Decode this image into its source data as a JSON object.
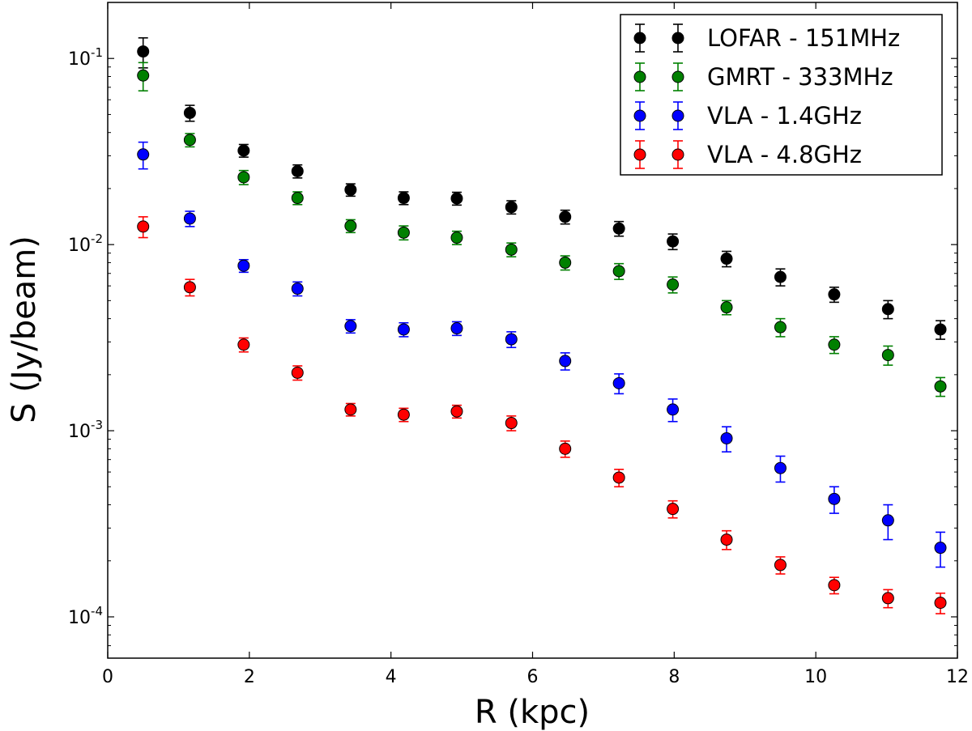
{
  "chart_data": {
    "type": "scatter",
    "title": "",
    "xlabel": "R (kpc)",
    "ylabel": "S (Jy/beam)",
    "xlim": [
      0,
      12
    ],
    "ylim": [
      6e-05,
      0.2
    ],
    "yscale": "log",
    "grid": false,
    "legend_position": "top-right",
    "x_ticks": [
      0,
      2,
      4,
      6,
      8,
      10,
      12
    ],
    "x_tick_labels": [
      "0",
      "2",
      "4",
      "6",
      "8",
      "10",
      "12"
    ],
    "y_ticks": [
      {
        "value": 0.1,
        "base": "10",
        "exp": "-1"
      },
      {
        "value": 0.01,
        "base": "10",
        "exp": "-2"
      },
      {
        "value": 0.001,
        "base": "10",
        "exp": "-3"
      },
      {
        "value": 0.0001,
        "base": "10",
        "exp": "-4"
      }
    ],
    "series": [
      {
        "name": "LOFAR - 151MHz",
        "color": "#000000",
        "points": [
          {
            "x": 0.5,
            "y": 0.109,
            "err": 0.02
          },
          {
            "x": 1.16,
            "y": 0.051,
            "err": 0.005
          },
          {
            "x": 1.92,
            "y": 0.032,
            "err": 0.0025
          },
          {
            "x": 2.68,
            "y": 0.0248,
            "err": 0.002
          },
          {
            "x": 3.43,
            "y": 0.0197,
            "err": 0.0015
          },
          {
            "x": 4.18,
            "y": 0.0178,
            "err": 0.0014
          },
          {
            "x": 4.93,
            "y": 0.0177,
            "err": 0.0014
          },
          {
            "x": 5.7,
            "y": 0.0159,
            "err": 0.0013
          },
          {
            "x": 6.46,
            "y": 0.0141,
            "err": 0.0012
          },
          {
            "x": 7.22,
            "y": 0.0122,
            "err": 0.0011
          },
          {
            "x": 7.98,
            "y": 0.0104,
            "err": 0.001
          },
          {
            "x": 8.74,
            "y": 0.0084,
            "err": 0.0008
          },
          {
            "x": 9.5,
            "y": 0.0067,
            "err": 0.0007
          },
          {
            "x": 10.26,
            "y": 0.0054,
            "err": 0.0005
          },
          {
            "x": 11.02,
            "y": 0.0045,
            "err": 0.0005
          },
          {
            "x": 11.76,
            "y": 0.0035,
            "err": 0.0004
          }
        ]
      },
      {
        "name": "GMRT - 333MHz",
        "color": "#008000",
        "points": [
          {
            "x": 0.5,
            "y": 0.081,
            "err": 0.014
          },
          {
            "x": 1.16,
            "y": 0.0365,
            "err": 0.003
          },
          {
            "x": 1.92,
            "y": 0.023,
            "err": 0.002
          },
          {
            "x": 2.68,
            "y": 0.0178,
            "err": 0.0014
          },
          {
            "x": 3.43,
            "y": 0.0126,
            "err": 0.001
          },
          {
            "x": 4.18,
            "y": 0.0116,
            "err": 0.001
          },
          {
            "x": 4.93,
            "y": 0.0109,
            "err": 0.0009
          },
          {
            "x": 5.7,
            "y": 0.0094,
            "err": 0.0008
          },
          {
            "x": 6.46,
            "y": 0.008,
            "err": 0.0007
          },
          {
            "x": 7.22,
            "y": 0.0072,
            "err": 0.0007
          },
          {
            "x": 7.98,
            "y": 0.0061,
            "err": 0.0006
          },
          {
            "x": 8.74,
            "y": 0.0046,
            "err": 0.0004
          },
          {
            "x": 9.5,
            "y": 0.0036,
            "err": 0.0004
          },
          {
            "x": 10.26,
            "y": 0.0029,
            "err": 0.0003
          },
          {
            "x": 11.02,
            "y": 0.00255,
            "err": 0.0003
          },
          {
            "x": 11.76,
            "y": 0.00173,
            "err": 0.0002
          }
        ]
      },
      {
        "name": "VLA - 1.4GHz",
        "color": "#0000ff",
        "points": [
          {
            "x": 0.5,
            "y": 0.0305,
            "err": 0.005
          },
          {
            "x": 1.16,
            "y": 0.0138,
            "err": 0.0013
          },
          {
            "x": 1.92,
            "y": 0.0077,
            "err": 0.0006
          },
          {
            "x": 2.68,
            "y": 0.0058,
            "err": 0.0005
          },
          {
            "x": 3.43,
            "y": 0.00365,
            "err": 0.0003
          },
          {
            "x": 4.18,
            "y": 0.0035,
            "err": 0.0003
          },
          {
            "x": 4.93,
            "y": 0.00355,
            "err": 0.0003
          },
          {
            "x": 5.7,
            "y": 0.0031,
            "err": 0.0003
          },
          {
            "x": 6.46,
            "y": 0.00237,
            "err": 0.00025
          },
          {
            "x": 7.22,
            "y": 0.0018,
            "err": 0.00022
          },
          {
            "x": 7.98,
            "y": 0.0013,
            "err": 0.00018
          },
          {
            "x": 8.74,
            "y": 0.00091,
            "err": 0.00014
          },
          {
            "x": 9.5,
            "y": 0.00063,
            "err": 0.0001
          },
          {
            "x": 10.26,
            "y": 0.00043,
            "err": 7e-05
          },
          {
            "x": 11.02,
            "y": 0.00033,
            "err": 7e-05
          },
          {
            "x": 11.76,
            "y": 0.000235,
            "err": 5e-05
          }
        ]
      },
      {
        "name": "VLA - 4.8GHz",
        "color": "#ff0000",
        "points": [
          {
            "x": 0.5,
            "y": 0.0125,
            "err": 0.0016
          },
          {
            "x": 1.16,
            "y": 0.0059,
            "err": 0.0006
          },
          {
            "x": 1.92,
            "y": 0.0029,
            "err": 0.00025
          },
          {
            "x": 2.68,
            "y": 0.00205,
            "err": 0.00018
          },
          {
            "x": 3.43,
            "y": 0.0013,
            "err": 0.0001
          },
          {
            "x": 4.18,
            "y": 0.00122,
            "err": 0.0001
          },
          {
            "x": 4.93,
            "y": 0.00127,
            "err": 0.0001
          },
          {
            "x": 5.7,
            "y": 0.0011,
            "err": 0.0001
          },
          {
            "x": 6.46,
            "y": 0.0008,
            "err": 8e-05
          },
          {
            "x": 7.22,
            "y": 0.00056,
            "err": 6e-05
          },
          {
            "x": 7.98,
            "y": 0.00038,
            "err": 4e-05
          },
          {
            "x": 8.74,
            "y": 0.00026,
            "err": 3e-05
          },
          {
            "x": 9.5,
            "y": 0.00019,
            "err": 2e-05
          },
          {
            "x": 10.26,
            "y": 0.000148,
            "err": 1.5e-05
          },
          {
            "x": 11.02,
            "y": 0.000126,
            "err": 1.4e-05
          },
          {
            "x": 11.76,
            "y": 0.000119,
            "err": 1.5e-05
          }
        ]
      }
    ]
  }
}
